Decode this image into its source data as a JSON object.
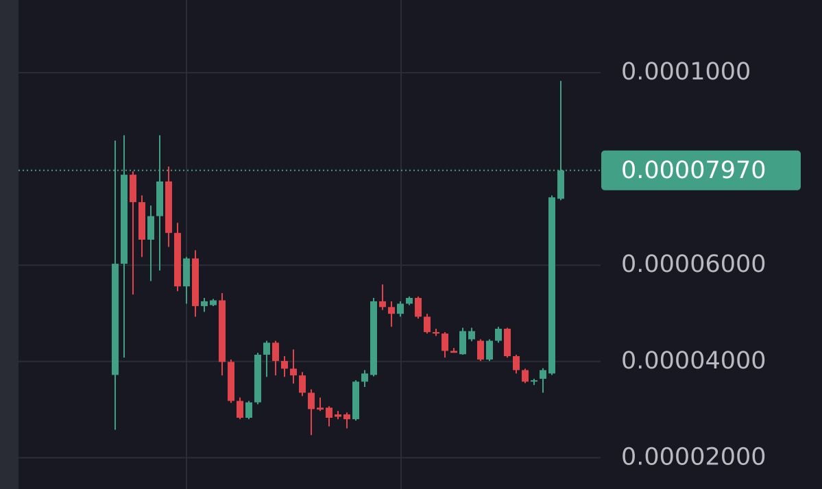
{
  "chart_data": {
    "type": "candlestick",
    "open": [
      3.72e-05,
      6.03e-05,
      7.88e-05,
      7.31e-05,
      6.53e-05,
      7.02e-05,
      7.74e-05,
      6.67e-05,
      5.56e-05,
      6.14e-05,
      5.15e-05,
      5.17e-05,
      5.27e-05,
      3.99e-05,
      3.18e-05,
      2.83e-05,
      3.15e-05,
      4.14e-05,
      4.39e-05,
      4.01e-05,
      3.85e-05,
      3.71e-05,
      3.35e-05,
      3.04e-05,
      3.04e-05,
      2.9e-05,
      2.9e-05,
      2.8e-05,
      3.58e-05,
      3.72e-05,
      5.25e-05,
      5.13e-05,
      4.99e-05,
      5.2e-05,
      5.32e-05,
      4.93e-05,
      4.61e-05,
      4.58e-05,
      4.22e-05,
      4.15e-05,
      4.46e-05,
      4.43e-05,
      4.04e-05,
      4.43e-05,
      4.68e-05,
      4.11e-05,
      3.82e-05,
      3.58e-05,
      3.64e-05,
      3.75e-05,
      7.38e-05
    ],
    "high": [
      8.59e-05,
      8.7e-05,
      7.95e-05,
      7.45e-05,
      7.24e-05,
      8.7e-05,
      8.05e-05,
      6.88e-05,
      6.17e-05,
      6.31e-05,
      5.32e-05,
      5.3e-05,
      5.42e-05,
      4.04e-05,
      3.25e-05,
      3.18e-05,
      4.18e-05,
      4.43e-05,
      4.43e-05,
      4.11e-05,
      4.25e-05,
      3.78e-05,
      3.42e-05,
      3.25e-05,
      3.07e-05,
      2.97e-05,
      2.94e-05,
      3.61e-05,
      3.82e-05,
      5.32e-05,
      5.6e-05,
      5.25e-05,
      5.25e-05,
      5.35e-05,
      5.35e-05,
      4.99e-05,
      4.68e-05,
      4.61e-05,
      4.28e-05,
      4.7e-05,
      4.7e-05,
      4.46e-05,
      4.46e-05,
      4.72e-05,
      4.7e-05,
      4.14e-05,
      3.85e-05,
      3.64e-05,
      3.86e-05,
      7.45e-05,
      9.83e-05
    ],
    "low": [
      2.58e-05,
      4.08e-05,
      5.39e-05,
      6.17e-05,
      5.67e-05,
      5.89e-05,
      6.38e-05,
      5.46e-05,
      5.2e-05,
      4.93e-05,
      5.03e-05,
      5.15e-05,
      3.71e-05,
      3.14e-05,
      2.8e-05,
      2.8e-05,
      3.11e-05,
      3.68e-05,
      3.71e-05,
      3.68e-05,
      3.54e-05,
      3.28e-05,
      2.47e-05,
      2.97e-05,
      2.65e-05,
      2.8e-05,
      2.61e-05,
      2.77e-05,
      3.47e-05,
      3.69e-05,
      5.07e-05,
      4.72e-05,
      4.93e-05,
      5.17e-05,
      4.89e-05,
      4.58e-05,
      4.53e-05,
      4.08e-05,
      4.18e-05,
      4.14e-05,
      4.42e-05,
      4.01e-05,
      4.01e-05,
      4.39e-05,
      4.08e-05,
      3.75e-05,
      3.55e-05,
      3.51e-05,
      3.35e-05,
      3.72e-05,
      7.35e-05
    ],
    "close": [
      6.03e-05,
      7.88e-05,
      7.31e-05,
      6.53e-05,
      7.02e-05,
      7.74e-05,
      6.67e-05,
      5.56e-05,
      6.14e-05,
      5.15e-05,
      5.25e-05,
      5.27e-05,
      3.99e-05,
      3.18e-05,
      2.83e-05,
      3.15e-05,
      4.14e-05,
      4.39e-05,
      4.01e-05,
      3.85e-05,
      3.71e-05,
      3.35e-05,
      3.01e-05,
      3e-05,
      2.83e-05,
      2.85e-05,
      2.8e-05,
      3.58e-05,
      3.75e-05,
      5.25e-05,
      5.13e-05,
      4.99e-05,
      5.2e-05,
      5.32e-05,
      4.93e-05,
      4.61e-05,
      4.58e-05,
      4.22e-05,
      4.18e-05,
      4.63e-05,
      4.63e-05,
      4.04e-05,
      4.43e-05,
      4.68e-05,
      4.11e-05,
      3.82e-05,
      3.58e-05,
      3.61e-05,
      3.82e-05,
      7.41e-05,
      7.97e-05
    ],
    "up_color": "#42a086",
    "down_color": "#e0454b",
    "ylim": [
      1.35e-05,
      0.0001151
    ],
    "yticks": [
      {
        "value": 2e-05,
        "label": "0.00002000"
      },
      {
        "value": 4e-05,
        "label": "0.00004000"
      },
      {
        "value": 6e-05,
        "label": "0.00006000"
      },
      {
        "value": 0.0001,
        "label": "0.0001000"
      }
    ],
    "grid": true,
    "last_price": {
      "value": 7.97e-05,
      "label": "0.00007970"
    }
  }
}
